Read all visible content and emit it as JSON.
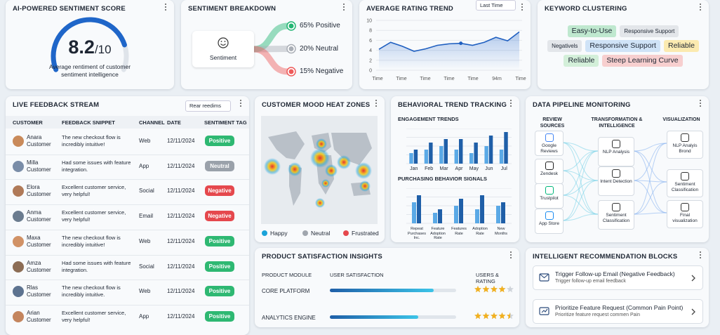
{
  "score": {
    "title": "AI-POWERED SENTIMENT SCORE",
    "value": "8.2",
    "scale": "/10",
    "caption": "Average rentiment of customer sentiment intelligence"
  },
  "breakdown": {
    "title": "SENTIMENT BREAKDOWN",
    "center": "Sentiment",
    "items": [
      {
        "label": "65% Positive",
        "color": "#22b573"
      },
      {
        "label": "20% Neutral",
        "color": "#a9aeb6"
      },
      {
        "label": "15% Negative",
        "color": "#ee5a5a"
      }
    ]
  },
  "trend": {
    "title": "AVERAGE RATING TREND",
    "filter": "Last Time",
    "ylim": [
      0,
      10
    ],
    "yticks": [
      0,
      2,
      4,
      6,
      8,
      10
    ],
    "x_labels": [
      "Time",
      "Time",
      "Time",
      "Time",
      "Time",
      "94m",
      "Time"
    ],
    "values": [
      4.2,
      5.6,
      4.8,
      3.8,
      4.3,
      5.0,
      5.3,
      5.4,
      5.0,
      5.6,
      6.6,
      5.9,
      7.7
    ]
  },
  "keywords": {
    "title": "KEYWORD CLUSTERING",
    "rows": [
      [
        {
          "text": "Easy-to-Use",
          "color": "#bfe8cf"
        },
        {
          "text": "Responsive Support",
          "color": "#e3e6ea"
        }
      ],
      [
        {
          "text": "Negativels",
          "color": "#e3e6ea"
        },
        {
          "text": "Responsive Support",
          "color": "#cfe3f7"
        },
        {
          "text": "Reliable",
          "color": "#fbeab0"
        }
      ],
      [
        {
          "text": "Reliable",
          "color": "#d3efd9"
        },
        {
          "text": "Steep Learning Curve",
          "color": "#f7cfcf"
        }
      ]
    ]
  },
  "feed": {
    "title": "LIVE FEEDBACK STREAM",
    "filter": "Rear reedims",
    "columns": [
      "CUSTOMER",
      "FEEDBACK SNIPPET",
      "CHANNEL",
      "DATE",
      "SENTIMENT TAG"
    ],
    "rows": [
      {
        "name": "Anara Customer",
        "snippet": "The new checkout flow is incredibly intuitive!",
        "channel": "Web",
        "date": "12/11/2024",
        "tag": "Positive",
        "tag_color": "#2eb872"
      },
      {
        "name": "Milla Customer",
        "snippet": "Had some issues with feature integration.",
        "channel": "App",
        "date": "12/11/2024",
        "tag": "Neutral",
        "tag_color": "#9aa1aa"
      },
      {
        "name": "Elora Customer",
        "snippet": "Excellent customer service, very helpful!",
        "channel": "Social",
        "date": "12/11/2024",
        "tag": "Negative",
        "tag_color": "#e5484d"
      },
      {
        "name": "Anma Customer",
        "snippet": "Excellent customer service, very helpful!",
        "channel": "Email",
        "date": "12/11/2024",
        "tag": "Negative",
        "tag_color": "#e5484d"
      },
      {
        "name": "Maxa Customer",
        "snippet": "The new checkout flow is incredibly intuitive!",
        "channel": "Web",
        "date": "12/11/2024",
        "tag": "Positive",
        "tag_color": "#2eb872"
      },
      {
        "name": "Amza Customer",
        "snippet": "Had some issues with feature integration.",
        "channel": "Social",
        "date": "12/11/2024",
        "tag": "Positive",
        "tag_color": "#2eb872"
      },
      {
        "name": "Rlas Customer",
        "snippet": "The new checkout flow is incredibly intuitive.",
        "channel": "Web",
        "date": "12/11/2024",
        "tag": "Positive",
        "tag_color": "#2eb872"
      },
      {
        "name": "Arian Customer",
        "snippet": "Excellent customer service, very helpful!",
        "channel": "App",
        "date": "12/11/2024",
        "tag": "Positive",
        "tag_color": "#2eb872"
      }
    ]
  },
  "mood": {
    "title": "CUSTOMER MOOD HEAT ZONES",
    "legend": [
      {
        "label": "Happy",
        "color": "#1aa3d9"
      },
      {
        "label": "Neutral",
        "color": "#a0a6ae"
      },
      {
        "label": "Frustrated",
        "color": "#e5484d"
      }
    ]
  },
  "behavior": {
    "title": "BEHAVIORAL TREND TRACKING",
    "engagement": {
      "title": "ENGAGEMENT TRENDS",
      "ylim": [
        0,
        10
      ],
      "categories": [
        "Jan",
        "Feb",
        "Mar",
        "Apr",
        "May",
        "Jun",
        "Jul"
      ],
      "series": [
        {
          "color": "#5aa9e6",
          "values": [
            3,
            4,
            5,
            4,
            3,
            5,
            4
          ]
        },
        {
          "color": "#1f5fa8",
          "values": [
            4,
            6,
            7,
            7,
            6,
            8,
            9
          ]
        }
      ]
    },
    "purchasing": {
      "title": "PURCHASING BEHAVIOR SIGNALS",
      "ylim": [
        0,
        10
      ],
      "categories": [
        "Repeat Purchases Inc.",
        "Feature Adoption Rate",
        "Features Rate",
        "Adoption Rate",
        "New Months"
      ],
      "series": [
        {
          "color": "#5aa9e6",
          "values": [
            6,
            3,
            5,
            4,
            5
          ]
        },
        {
          "color": "#1f5fa8",
          "values": [
            8,
            4,
            7,
            8,
            6
          ]
        }
      ]
    }
  },
  "pipeline": {
    "title": "DATA PIPELINE MONITORING",
    "columns": [
      "REVIEW SOURCES",
      "TRANSFORMATION & INTELLIGENCE",
      "VISUALIZATION"
    ],
    "sources": [
      "Google Reviews",
      "Zendesk",
      "Trustpilot",
      "App Store"
    ],
    "transforms": [
      "NLP Analysis",
      "Intent Detection",
      "Sentiment Classification"
    ],
    "outputs": [
      "NLP Analyis Brond",
      "Sentiment Classification",
      "Final visualization"
    ]
  },
  "product": {
    "title": "PRODUCT SATISFACTION INSIGHTS",
    "columns": [
      "PRODUCT MODULE",
      "USER SATISFACTION",
      "USERS & RATING"
    ],
    "satisfaction_range": [
      0,
      100
    ],
    "rating_max": 5,
    "rows": [
      {
        "module": "CORE PLATFORM",
        "satisfaction": 82,
        "rating": 4
      },
      {
        "module": "ANALYTICS ENGINE",
        "satisfaction": 70,
        "rating": 4.5
      }
    ]
  },
  "recs": {
    "title": "INTELLIGENT RECOMMENDATION BLOCKS",
    "items": [
      {
        "title": "Trigger Follow-up Email (Negative Feedback)",
        "subtitle": "Trigger follow-up email feedback"
      },
      {
        "title": "Prioritize Feature Request (Common Pain Point)",
        "subtitle": "Prioritize feature request commen Pain"
      }
    ]
  }
}
